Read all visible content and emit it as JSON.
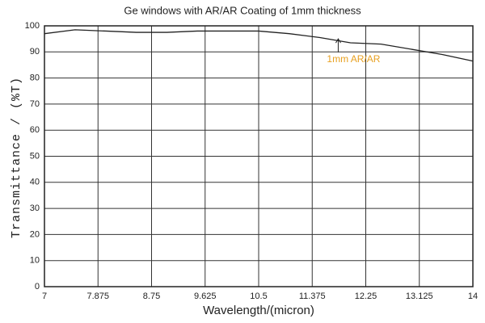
{
  "chart_data": {
    "type": "line",
    "title": "Ge windows with AR/AR Coating of 1mm thickness",
    "x_label": "Wavelength/(micron)",
    "y_label": "Transmittance / (%T)",
    "x": [
      7,
      7.5,
      8,
      8.5,
      9,
      9.5,
      10,
      10.5,
      11,
      11.5,
      12,
      12.5,
      13,
      13.5,
      14
    ],
    "series": [
      {
        "name": "1mm AR/AR",
        "color": "#222222",
        "values": [
          97,
          98.5,
          98,
          97.5,
          97.5,
          98,
          98,
          98,
          97,
          95.5,
          93.5,
          93,
          91,
          89,
          86.5
        ]
      }
    ],
    "annotation": "1mm AR/AR",
    "annotation_color": "#e8a020",
    "xlim": [
      7,
      14
    ],
    "xticks": [
      7,
      7.875,
      8.75,
      9.625,
      10.5,
      11.375,
      12.25,
      13.125,
      14
    ],
    "ylim": [
      0,
      100
    ],
    "yticks": [
      0,
      10,
      20,
      30,
      40,
      50,
      60,
      70,
      80,
      90,
      100
    ],
    "grid": true
  }
}
